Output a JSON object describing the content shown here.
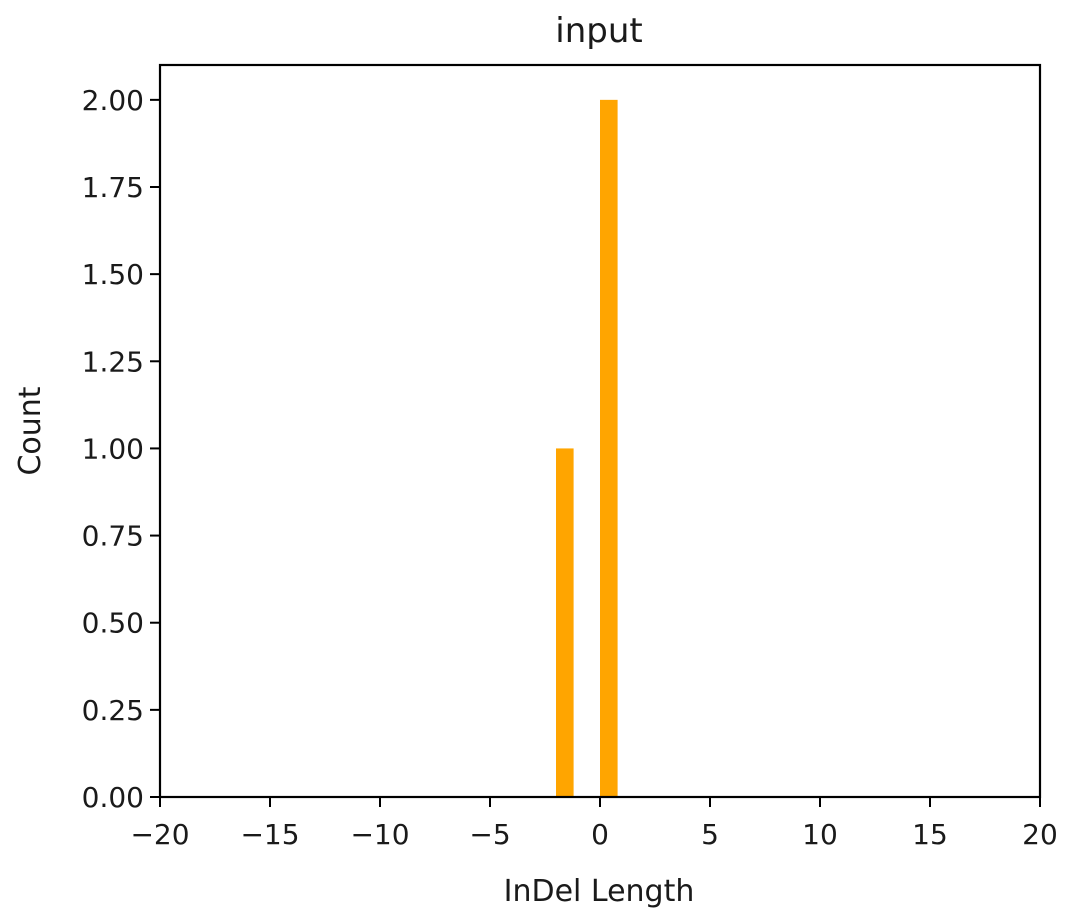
{
  "chart_data": {
    "type": "bar",
    "title": "input",
    "xlabel": "InDel Length",
    "ylabel": "Count",
    "xlim": [
      -20,
      20
    ],
    "ylim": [
      0,
      2.1
    ],
    "x_ticks": [
      -20,
      -15,
      -10,
      -5,
      0,
      5,
      10,
      15,
      20
    ],
    "x_tick_labels": [
      "−20",
      "−15",
      "−10",
      "−5",
      "0",
      "5",
      "10",
      "15",
      "20"
    ],
    "y_ticks": [
      0,
      0.25,
      0.5,
      0.75,
      1.0,
      1.25,
      1.5,
      1.75,
      2.0
    ],
    "y_tick_labels": [
      "0.00",
      "0.25",
      "0.50",
      "0.75",
      "1.00",
      "1.25",
      "1.50",
      "1.75",
      "2.00"
    ],
    "bars": [
      {
        "x_start": -2.0,
        "x_end": -1.2,
        "value": 1
      },
      {
        "x_start": 0.0,
        "x_end": 0.8,
        "value": 2
      }
    ],
    "bar_color": "#ffa500",
    "grid": false
  }
}
